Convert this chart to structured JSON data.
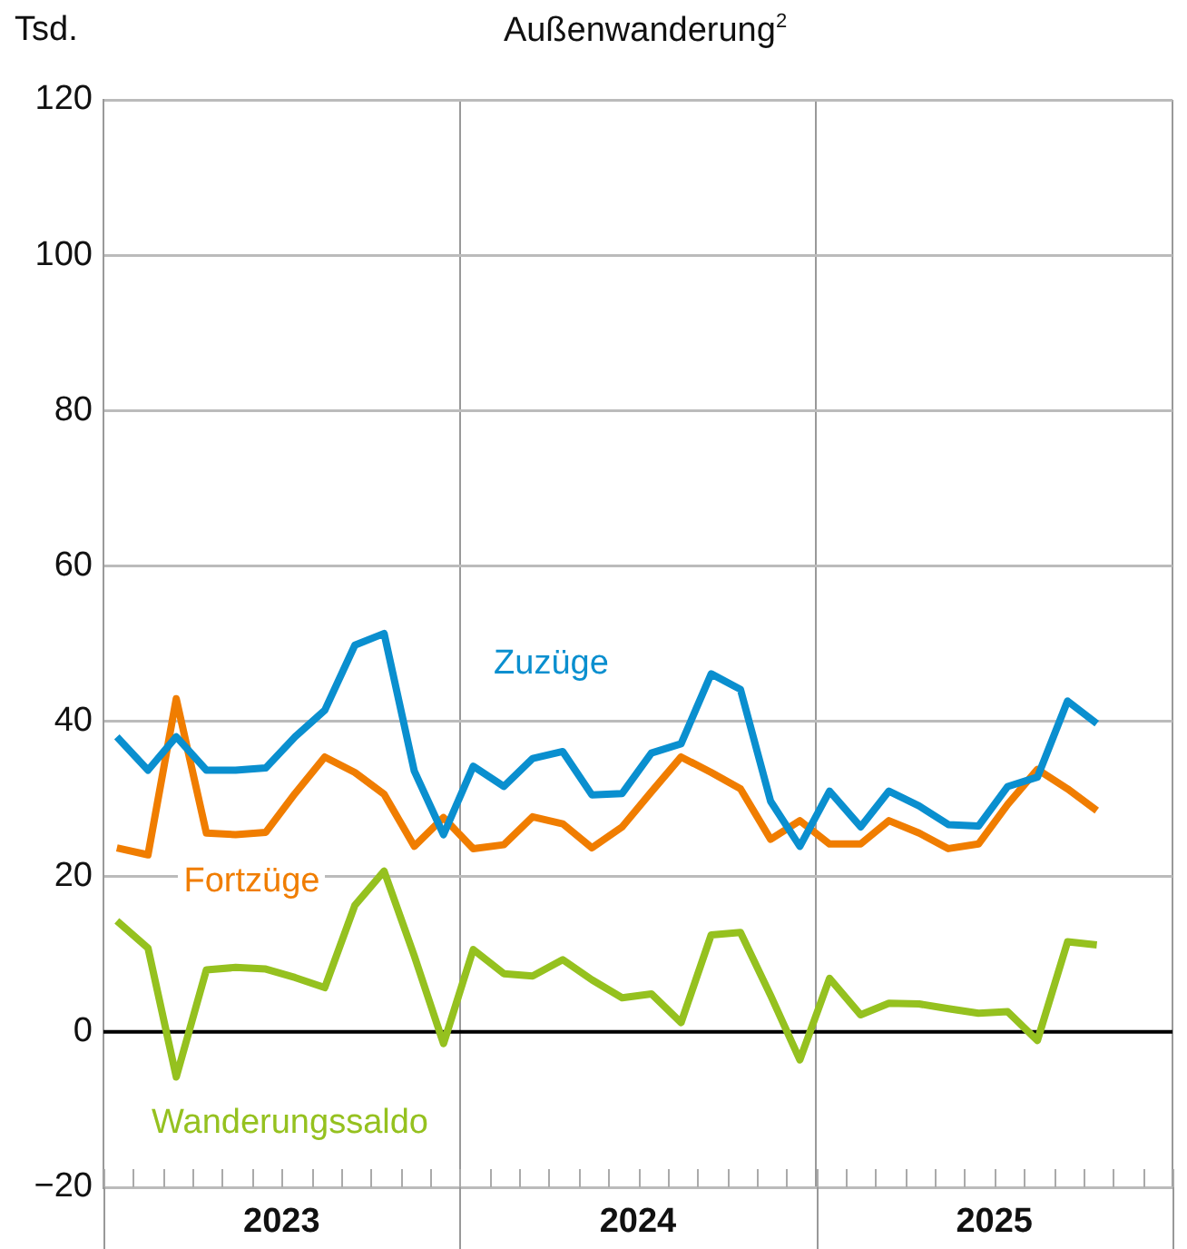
{
  "chart_data": {
    "type": "line",
    "title": "Außenwanderung$^{2}$",
    "ylabel": "Tsd.",
    "x": [
      "2023-01-15",
      "2023-02-15",
      "2023-03-15",
      "2023-04-15",
      "2023-05-15",
      "2023-06-15",
      "2023-07-15",
      "2023-08-15",
      "2023-09-15",
      "2023-10-15",
      "2023-11-15",
      "2023-12-15",
      "2024-01-15",
      "2024-02-15",
      "2024-03-15",
      "2024-04-15",
      "2024-05-15",
      "2024-06-15",
      "2024-07-15",
      "2024-08-15",
      "2024-09-15",
      "2024-10-15",
      "2024-11-15",
      "2024-12-15",
      "2025-01-15",
      "2025-02-15",
      "2025-03-15",
      "2025-04-15",
      "2025-05-15",
      "2025-06-15",
      "2025-07-15",
      "2025-08-15",
      "2025-09-15",
      "2025-10-15"
    ],
    "series": [
      {
        "name": "Zuzüge",
        "color": "#0a8fcf",
        "values": [
          38.0,
          33.7,
          38.0,
          33.7,
          33.7,
          34.0,
          38.0,
          41.4,
          49.8,
          51.3,
          33.6,
          25.4,
          34.2,
          31.6,
          35.2,
          36.1,
          30.5,
          30.7,
          35.9,
          37.1,
          46.1,
          44.1,
          29.7,
          23.9,
          31.0,
          26.4,
          31.0,
          29.1,
          26.7,
          26.5,
          31.6,
          32.8,
          42.6,
          39.7
        ]
      },
      {
        "name": "Fortzüge",
        "color": "#f07d00",
        "values": [
          23.7,
          22.8,
          42.9,
          25.6,
          25.4,
          25.7,
          30.7,
          35.4,
          33.4,
          30.6,
          23.9,
          27.6,
          23.6,
          24.1,
          27.7,
          26.8,
          23.7,
          26.4,
          30.9,
          35.4,
          33.4,
          31.3,
          24.8,
          27.2,
          24.2,
          24.2,
          27.2,
          25.6,
          23.6,
          24.2,
          29.3,
          33.8,
          31.3,
          28.5
        ]
      },
      {
        "name": "Wanderungssaldo",
        "color": "#95c11f",
        "values": [
          14.3,
          10.8,
          -5.8,
          8.0,
          8.3,
          8.1,
          7.0,
          5.7,
          16.3,
          20.7,
          9.8,
          -1.5,
          10.6,
          7.5,
          7.2,
          9.3,
          6.7,
          4.4,
          4.9,
          1.2,
          12.5,
          12.8,
          4.7,
          -3.6,
          6.9,
          2.2,
          3.7,
          3.6,
          3.0,
          2.4,
          2.6,
          -1.1,
          11.6,
          11.2
        ]
      }
    ],
    "xlim": [
      "2023-01-01",
      "2026-01-01"
    ],
    "xticks": [
      {
        "value": "2023-01-01",
        "label": null
      },
      {
        "value": "2023-07-01",
        "label": "2023"
      },
      {
        "value": "2024-01-01",
        "label": null
      },
      {
        "value": "2024-07-01",
        "label": "2024"
      },
      {
        "value": "2025-01-01",
        "label": null
      },
      {
        "value": "2025-07-01",
        "label": "2025"
      },
      {
        "value": "2026-01-01",
        "label": null
      }
    ],
    "ylim": [
      -20,
      120
    ],
    "yticks": [
      {
        "value": -20,
        "label": "−20"
      },
      0,
      20,
      40,
      60,
      80,
      100,
      120
    ],
    "ref_lines": [
      {
        "axis": "y",
        "value": 0,
        "color": "#000000"
      }
    ],
    "grid": true,
    "legend": false,
    "marker": "none",
    "line_style": "solid"
  }
}
